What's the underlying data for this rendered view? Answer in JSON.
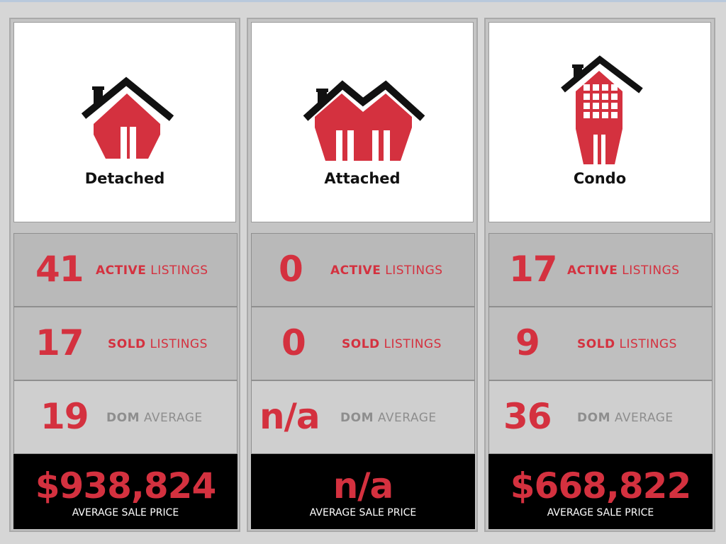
{
  "colors": {
    "accent": "#d4313f",
    "roof": "#111111"
  },
  "columns": [
    {
      "label": "Detached",
      "icon": "detached-house-icon",
      "active_value": "41",
      "active_bold": "ACTIVE",
      "active_rest": " LISTINGS",
      "sold_value": "17",
      "sold_bold": "SOLD",
      "sold_rest": " LISTINGS",
      "dom_value": "19",
      "dom_bold": "DOM",
      "dom_rest": " AVERAGE",
      "price_value": "$938,824",
      "price_label": "AVERAGE SALE PRICE"
    },
    {
      "label": "Attached",
      "icon": "attached-house-icon",
      "active_value": "0",
      "active_bold": "ACTIVE",
      "active_rest": " LISTINGS",
      "sold_value": "0",
      "sold_bold": "SOLD",
      "sold_rest": " LISTINGS",
      "dom_value": "n/a",
      "dom_bold": "DOM",
      "dom_rest": " AVERAGE",
      "price_value": "n/a",
      "price_label": "AVERAGE SALE PRICE"
    },
    {
      "label": "Condo",
      "icon": "condo-building-icon",
      "active_value": "17",
      "active_bold": "ACTIVE",
      "active_rest": " LISTINGS",
      "sold_value": "9",
      "sold_bold": "SOLD",
      "sold_rest": " LISTINGS",
      "dom_value": "36",
      "dom_bold": "DOM",
      "dom_rest": " AVERAGE",
      "price_value": "$668,822",
      "price_label": "AVERAGE SALE PRICE"
    }
  ]
}
